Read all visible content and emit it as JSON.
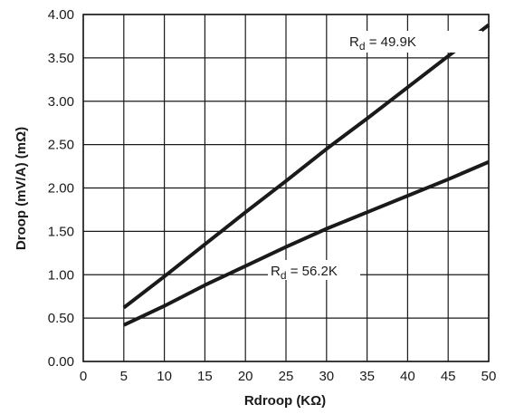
{
  "chart_data": {
    "type": "line",
    "xlabel": "Rdroop (KΩ)",
    "ylabel": "Droop (mV/A) (mΩ)",
    "xlim": [
      0,
      50
    ],
    "ylim": [
      0,
      4
    ],
    "x_ticks": [
      0,
      5,
      10,
      15,
      20,
      25,
      30,
      35,
      40,
      45,
      50
    ],
    "y_ticks": [
      0,
      0.5,
      1,
      1.5,
      2,
      2.5,
      3,
      3.5,
      4
    ],
    "x_tick_labels": [
      "0",
      "5",
      "10",
      "15",
      "20",
      "25",
      "30",
      "35",
      "40",
      "45",
      "50"
    ],
    "y_tick_labels": [
      "0.00",
      "0.50",
      "1.00",
      "1.50",
      "2.00",
      "2.50",
      "3.00",
      "3.50",
      "4.00"
    ],
    "grid": true,
    "series": [
      {
        "name": "Rd = 49.9K",
        "name_main": "R",
        "name_sub": "d",
        "name_rest": " = 49.9K",
        "x": [
          5,
          10,
          15,
          20,
          25,
          30,
          35,
          40,
          45,
          50
        ],
        "y": [
          0.62,
          0.98,
          1.35,
          1.72,
          2.08,
          2.45,
          2.8,
          3.16,
          3.52,
          3.88
        ],
        "color": "#1a1a1a"
      },
      {
        "name": "Rd = 56.2K",
        "name_main": "R",
        "name_sub": "d",
        "name_rest": " = 56.2K",
        "x": [
          5,
          10,
          15,
          20,
          25,
          30,
          35,
          40,
          45,
          50
        ],
        "y": [
          0.42,
          0.64,
          0.88,
          1.1,
          1.32,
          1.53,
          1.72,
          1.91,
          2.1,
          2.3
        ],
        "color": "#1a1a1a"
      }
    ]
  }
}
